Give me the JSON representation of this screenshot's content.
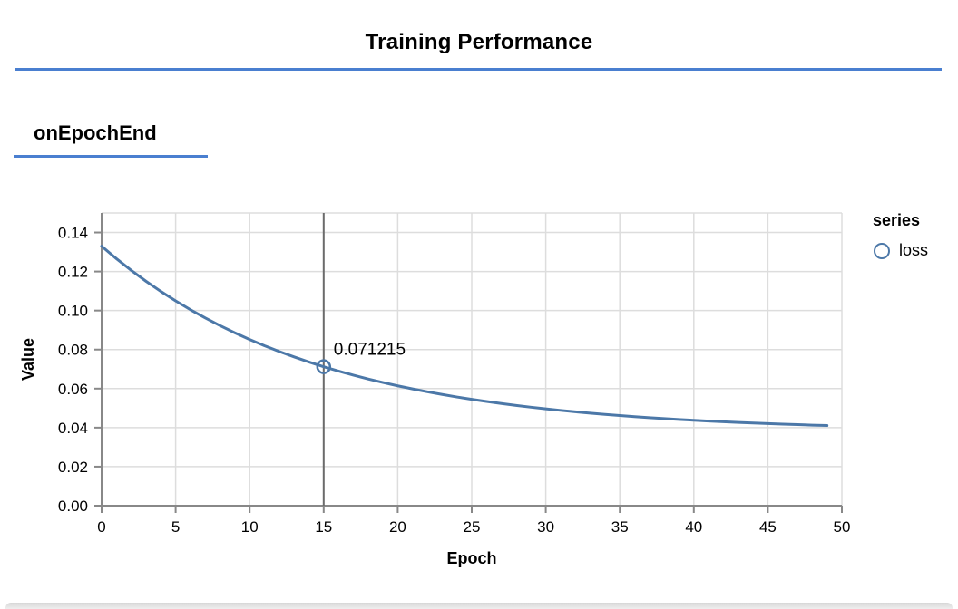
{
  "page": {
    "title": "Training Performance",
    "section_title": "onEpochEnd",
    "accent_color": "#4a7fd0"
  },
  "legend": {
    "title": "series",
    "items": [
      {
        "label": "loss",
        "marker": "open-circle",
        "color": "#4c78a8"
      }
    ]
  },
  "chart_data": {
    "type": "line",
    "title": "onEpochEnd",
    "xlabel": "Epoch",
    "ylabel": "Value",
    "xlim": [
      0,
      50
    ],
    "ylim": [
      0,
      0.15
    ],
    "x_ticks": [
      0,
      5,
      10,
      15,
      20,
      25,
      30,
      35,
      40,
      45,
      50
    ],
    "y_ticks": [
      0,
      0.02,
      0.04,
      0.06,
      0.08,
      0.1,
      0.12,
      0.14
    ],
    "grid": true,
    "legend_position": "right",
    "colors": {
      "line": "#4c78a8",
      "grid": "#dddddd",
      "domain": "#888888",
      "hover_rule": "#6b6b6b",
      "label": "#000000"
    },
    "series": [
      {
        "name": "loss",
        "color": "#4c78a8",
        "x": [
          0,
          1,
          2,
          3,
          4,
          5,
          6,
          7,
          8,
          9,
          10,
          11,
          12,
          13,
          14,
          15,
          16,
          17,
          18,
          19,
          20,
          21,
          22,
          23,
          24,
          25,
          26,
          27,
          28,
          29,
          30,
          31,
          32,
          33,
          34,
          35,
          36,
          37,
          38,
          39,
          40,
          41,
          42,
          43,
          44,
          45,
          46,
          47,
          48,
          49
        ],
        "y": [
          0.133,
          0.126577,
          0.120589,
          0.115005,
          0.109799,
          0.104945,
          0.100419,
          0.096199,
          0.092265,
          0.088596,
          0.085176,
          0.081986,
          0.079013,
          0.07624,
          0.073655,
          0.071215,
          0.068997,
          0.066901,
          0.064947,
          0.063125,
          0.061427,
          0.059843,
          0.058366,
          0.056989,
          0.055706,
          0.054509,
          0.053392,
          0.052352,
          0.051382,
          0.050477,
          0.049633,
          0.048847,
          0.048114,
          0.04743,
          0.046792,
          0.046198,
          0.045644,
          0.045127,
          0.044645,
          0.044196,
          0.043777,
          0.043386,
          0.043022,
          0.042683,
          0.042366,
          0.042071,
          0.041796,
          0.041539,
          0.0413,
          0.041077
        ]
      }
    ],
    "highlight": {
      "series": "loss",
      "x": 15,
      "y": 0.071215,
      "label": "0.071215"
    }
  }
}
